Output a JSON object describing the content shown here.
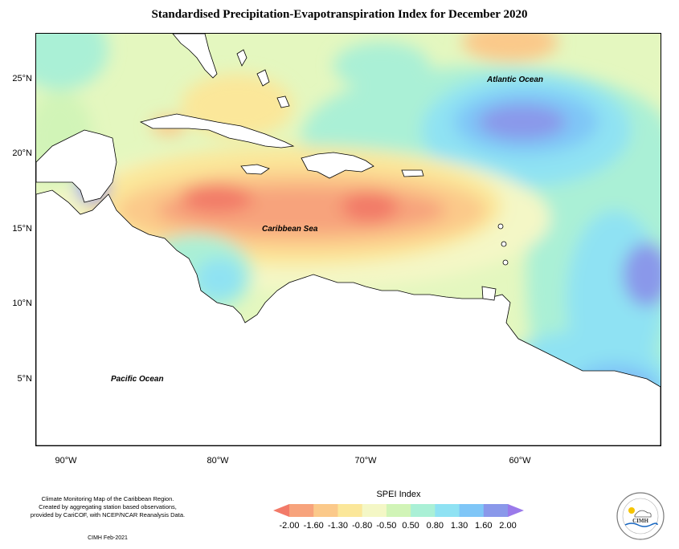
{
  "title": "Standardised Precipitation-Evapotranspiration Index for December 2020",
  "map": {
    "labels": {
      "atlantic": "Atlantic Ocean",
      "caribbean": "Caribbean Sea",
      "pacific": "Pacific Ocean"
    },
    "lat_ticks": [
      "25°N",
      "20°N",
      "15°N",
      "10°N",
      "5°N"
    ],
    "lon_ticks": [
      "90°W",
      "80°W",
      "70°W",
      "60°W"
    ]
  },
  "credits": {
    "line1": "Climate Monitoring Map of the Caribbean Region.",
    "line2": "Created by aggregating station based observations,",
    "line3": "provided by CariCOF, with NCEP/NCAR Reanalysis Data.",
    "made_by": "CIMH Feb-2021"
  },
  "legend": {
    "title": "SPEI Index",
    "ticks": [
      "-2.00",
      "-1.60",
      "-1.30",
      "-0.80",
      "-0.50",
      "0.50",
      "0.80",
      "1.30",
      "1.60",
      "2.00"
    ],
    "colors": [
      "#f27a68",
      "#f7a37c",
      "#fbc98a",
      "#fbe79a",
      "#f4f7c6",
      "#d1f4b7",
      "#aaf0d6",
      "#8fe2f3",
      "#7fc6f7",
      "#8a98ea",
      "#9a7aea"
    ]
  },
  "logo": {
    "text": "CIMH"
  }
}
